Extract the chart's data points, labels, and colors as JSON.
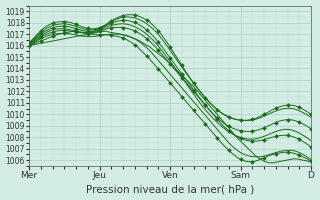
{
  "title": "Pression niveau de la mer( hPa )",
  "bg_color": "#d4ede4",
  "grid_major_color": "#aacfc4",
  "grid_minor_color": "#c0ddd6",
  "line_color": "#1a6b1a",
  "ylim": [
    1005.5,
    1019.5
  ],
  "yticks": [
    1006,
    1007,
    1008,
    1009,
    1010,
    1011,
    1012,
    1013,
    1014,
    1015,
    1016,
    1017,
    1018,
    1019
  ],
  "xtick_labels": [
    "Mer",
    "Jeu",
    "Ven",
    "Sam",
    "D"
  ],
  "xtick_positions": [
    0,
    24,
    48,
    72,
    96
  ],
  "n_points": 97,
  "series": [
    {
      "values": [
        1016.0,
        1016.05,
        1016.1,
        1016.15,
        1016.2,
        1016.25,
        1016.3,
        1016.35,
        1016.4,
        1016.45,
        1016.5,
        1016.55,
        1016.6,
        1016.65,
        1016.7,
        1016.75,
        1016.8,
        1016.85,
        1016.9,
        1016.95,
        1017.0,
        1017.05,
        1017.1,
        1017.15,
        1017.2,
        1017.25,
        1017.25,
        1017.2,
        1017.15,
        1017.1,
        1017.05,
        1017.0,
        1016.95,
        1016.9,
        1016.8,
        1016.7,
        1016.6,
        1016.5,
        1016.35,
        1016.2,
        1016.05,
        1015.9,
        1015.7,
        1015.5,
        1015.3,
        1015.1,
        1014.9,
        1014.65,
        1014.4,
        1014.15,
        1013.9,
        1013.65,
        1013.4,
        1013.15,
        1012.9,
        1012.65,
        1012.4,
        1012.1,
        1011.8,
        1011.5,
        1011.2,
        1010.9,
        1010.6,
        1010.3,
        1010.0,
        1009.7,
        1009.4,
        1009.1,
        1008.8,
        1008.5,
        1008.2,
        1007.9,
        1007.65,
        1007.4,
        1007.15,
        1006.9,
        1006.65,
        1006.4,
        1006.2,
        1006.05,
        1005.9,
        1005.8,
        1005.75,
        1005.75,
        1005.8,
        1005.85,
        1005.9,
        1005.95,
        1006.0,
        1006.05,
        1006.1,
        1006.1,
        1006.05,
        1006.0,
        1005.95,
        1005.9,
        1005.85
      ],
      "has_marker": false,
      "lw": 0.7
    },
    {
      "values": [
        1016.0,
        1016.1,
        1016.2,
        1016.3,
        1016.4,
        1016.5,
        1016.6,
        1016.7,
        1016.8,
        1016.9,
        1017.0,
        1017.05,
        1017.1,
        1017.15,
        1017.2,
        1017.25,
        1017.25,
        1017.2,
        1017.15,
        1017.1,
        1017.05,
        1017.0,
        1016.98,
        1016.95,
        1016.95,
        1016.95,
        1016.95,
        1016.93,
        1016.9,
        1016.85,
        1016.8,
        1016.75,
        1016.65,
        1016.55,
        1016.4,
        1016.25,
        1016.05,
        1015.85,
        1015.6,
        1015.35,
        1015.1,
        1014.85,
        1014.55,
        1014.25,
        1013.95,
        1013.65,
        1013.35,
        1013.05,
        1012.75,
        1012.45,
        1012.15,
        1011.85,
        1011.55,
        1011.25,
        1010.95,
        1010.65,
        1010.35,
        1010.05,
        1009.75,
        1009.45,
        1009.15,
        1008.85,
        1008.55,
        1008.25,
        1007.95,
        1007.65,
        1007.35,
        1007.1,
        1006.85,
        1006.6,
        1006.4,
        1006.2,
        1006.05,
        1005.95,
        1005.88,
        1005.85,
        1005.85,
        1005.9,
        1005.98,
        1006.1,
        1006.2,
        1006.3,
        1006.4,
        1006.48,
        1006.55,
        1006.6,
        1006.65,
        1006.68,
        1006.68,
        1006.65,
        1006.6,
        1006.52,
        1006.42,
        1006.3,
        1006.18,
        1006.05,
        1005.92
      ],
      "has_marker": true,
      "lw": 0.7
    },
    {
      "values": [
        1016.0,
        1016.15,
        1016.3,
        1016.45,
        1016.6,
        1016.72,
        1016.82,
        1016.9,
        1016.97,
        1017.02,
        1017.05,
        1017.07,
        1017.07,
        1017.05,
        1017.02,
        1016.98,
        1016.93,
        1016.88,
        1016.83,
        1016.8,
        1016.78,
        1016.78,
        1016.8,
        1016.83,
        1016.87,
        1016.9,
        1016.95,
        1016.98,
        1017.0,
        1017.0,
        1017.0,
        1016.98,
        1016.93,
        1016.88,
        1016.8,
        1016.7,
        1016.58,
        1016.42,
        1016.25,
        1016.05,
        1015.82,
        1015.58,
        1015.3,
        1015.0,
        1014.7,
        1014.4,
        1014.1,
        1013.8,
        1013.5,
        1013.2,
        1012.9,
        1012.6,
        1012.3,
        1012.0,
        1011.7,
        1011.4,
        1011.1,
        1010.8,
        1010.5,
        1010.2,
        1009.9,
        1009.6,
        1009.3,
        1009.0,
        1008.7,
        1008.4,
        1008.1,
        1007.8,
        1007.5,
        1007.25,
        1007.02,
        1006.82,
        1006.65,
        1006.52,
        1006.42,
        1006.35,
        1006.3,
        1006.28,
        1006.28,
        1006.3,
        1006.35,
        1006.42,
        1006.5,
        1006.58,
        1006.65,
        1006.72,
        1006.78,
        1006.82,
        1006.85,
        1006.85,
        1006.82,
        1006.75,
        1006.65,
        1006.52,
        1006.38,
        1006.22,
        1006.05
      ],
      "has_marker": false,
      "lw": 0.7
    },
    {
      "values": [
        1016.05,
        1016.2,
        1016.38,
        1016.55,
        1016.72,
        1016.87,
        1017.0,
        1017.1,
        1017.18,
        1017.25,
        1017.3,
        1017.32,
        1017.32,
        1017.3,
        1017.27,
        1017.23,
        1017.18,
        1017.15,
        1017.12,
        1017.1,
        1017.1,
        1017.12,
        1017.15,
        1017.2,
        1017.28,
        1017.35,
        1017.42,
        1017.5,
        1017.55,
        1017.58,
        1017.6,
        1017.6,
        1017.58,
        1017.53,
        1017.47,
        1017.38,
        1017.28,
        1017.15,
        1017.0,
        1016.82,
        1016.62,
        1016.4,
        1016.15,
        1015.88,
        1015.6,
        1015.3,
        1015.0,
        1014.7,
        1014.4,
        1014.1,
        1013.8,
        1013.5,
        1013.2,
        1012.9,
        1012.6,
        1012.3,
        1012.0,
        1011.7,
        1011.4,
        1011.1,
        1010.8,
        1010.5,
        1010.2,
        1009.9,
        1009.6,
        1009.3,
        1009.02,
        1008.77,
        1008.55,
        1008.35,
        1008.17,
        1008.02,
        1007.9,
        1007.8,
        1007.72,
        1007.67,
        1007.65,
        1007.65,
        1007.67,
        1007.72,
        1007.78,
        1007.85,
        1007.93,
        1008.0,
        1008.07,
        1008.12,
        1008.15,
        1008.17,
        1008.15,
        1008.1,
        1008.03,
        1007.92,
        1007.8,
        1007.65,
        1007.5,
        1007.33,
        1007.15
      ],
      "has_marker": true,
      "lw": 0.7
    },
    {
      "values": [
        1016.1,
        1016.28,
        1016.48,
        1016.67,
        1016.85,
        1017.02,
        1017.17,
        1017.28,
        1017.37,
        1017.43,
        1017.47,
        1017.48,
        1017.47,
        1017.43,
        1017.38,
        1017.32,
        1017.25,
        1017.2,
        1017.17,
        1017.15,
        1017.15,
        1017.18,
        1017.23,
        1017.3,
        1017.38,
        1017.48,
        1017.57,
        1017.67,
        1017.75,
        1017.82,
        1017.87,
        1017.9,
        1017.9,
        1017.88,
        1017.83,
        1017.75,
        1017.65,
        1017.52,
        1017.37,
        1017.2,
        1017.0,
        1016.78,
        1016.53,
        1016.25,
        1015.95,
        1015.63,
        1015.3,
        1014.97,
        1014.63,
        1014.28,
        1013.93,
        1013.58,
        1013.23,
        1012.87,
        1012.5,
        1012.13,
        1011.77,
        1011.4,
        1011.05,
        1010.72,
        1010.4,
        1010.1,
        1009.82,
        1009.55,
        1009.3,
        1009.07,
        1008.85,
        1008.65,
        1008.47,
        1008.32,
        1008.18,
        1008.07,
        1007.98,
        1007.9,
        1007.85,
        1007.82,
        1007.82,
        1007.85,
        1007.9,
        1007.98,
        1008.07,
        1008.17,
        1008.28,
        1008.38,
        1008.48,
        1008.57,
        1008.63,
        1008.68,
        1008.68,
        1008.65,
        1008.58,
        1008.48,
        1008.35,
        1008.2,
        1008.05,
        1007.87,
        1007.68
      ],
      "has_marker": false,
      "lw": 0.7
    },
    {
      "values": [
        1016.15,
        1016.35,
        1016.58,
        1016.8,
        1017.0,
        1017.18,
        1017.33,
        1017.45,
        1017.55,
        1017.63,
        1017.68,
        1017.7,
        1017.7,
        1017.67,
        1017.62,
        1017.55,
        1017.47,
        1017.4,
        1017.33,
        1017.28,
        1017.25,
        1017.25,
        1017.28,
        1017.35,
        1017.45,
        1017.57,
        1017.7,
        1017.83,
        1017.95,
        1018.05,
        1018.13,
        1018.18,
        1018.2,
        1018.2,
        1018.17,
        1018.1,
        1018.02,
        1017.9,
        1017.75,
        1017.58,
        1017.38,
        1017.15,
        1016.9,
        1016.62,
        1016.3,
        1015.97,
        1015.63,
        1015.28,
        1014.93,
        1014.57,
        1014.22,
        1013.87,
        1013.52,
        1013.17,
        1012.82,
        1012.47,
        1012.13,
        1011.78,
        1011.45,
        1011.12,
        1010.8,
        1010.5,
        1010.22,
        1009.95,
        1009.7,
        1009.48,
        1009.28,
        1009.1,
        1008.95,
        1008.82,
        1008.72,
        1008.63,
        1008.57,
        1008.52,
        1008.5,
        1008.5,
        1008.52,
        1008.57,
        1008.63,
        1008.72,
        1008.82,
        1008.93,
        1009.05,
        1009.17,
        1009.27,
        1009.37,
        1009.45,
        1009.5,
        1009.53,
        1009.52,
        1009.48,
        1009.4,
        1009.3,
        1009.18,
        1009.05,
        1008.9,
        1008.73
      ],
      "has_marker": true,
      "lw": 0.7
    },
    {
      "values": [
        1016.2,
        1016.43,
        1016.67,
        1016.92,
        1017.15,
        1017.35,
        1017.52,
        1017.65,
        1017.75,
        1017.82,
        1017.87,
        1017.9,
        1017.9,
        1017.87,
        1017.82,
        1017.75,
        1017.67,
        1017.58,
        1017.5,
        1017.43,
        1017.38,
        1017.37,
        1017.38,
        1017.43,
        1017.53,
        1017.65,
        1017.8,
        1017.95,
        1018.1,
        1018.23,
        1018.33,
        1018.42,
        1018.47,
        1018.5,
        1018.5,
        1018.47,
        1018.42,
        1018.33,
        1018.22,
        1018.08,
        1017.92,
        1017.72,
        1017.5,
        1017.25,
        1016.97,
        1016.65,
        1016.32,
        1015.97,
        1015.6,
        1015.23,
        1014.87,
        1014.5,
        1014.13,
        1013.77,
        1013.42,
        1013.07,
        1012.73,
        1012.4,
        1012.08,
        1011.77,
        1011.47,
        1011.18,
        1010.9,
        1010.65,
        1010.42,
        1010.22,
        1010.05,
        1009.9,
        1009.77,
        1009.67,
        1009.58,
        1009.52,
        1009.48,
        1009.45,
        1009.45,
        1009.47,
        1009.5,
        1009.55,
        1009.63,
        1009.72,
        1009.83,
        1009.95,
        1010.07,
        1010.18,
        1010.28,
        1010.37,
        1010.45,
        1010.5,
        1010.52,
        1010.52,
        1010.48,
        1010.4,
        1010.3,
        1010.18,
        1010.05,
        1009.9,
        1009.73
      ],
      "has_marker": false,
      "lw": 0.7
    },
    {
      "values": [
        1016.25,
        1016.5,
        1016.77,
        1017.05,
        1017.3,
        1017.52,
        1017.7,
        1017.85,
        1017.95,
        1018.03,
        1018.07,
        1018.1,
        1018.1,
        1018.07,
        1018.02,
        1017.95,
        1017.85,
        1017.75,
        1017.65,
        1017.57,
        1017.5,
        1017.47,
        1017.47,
        1017.5,
        1017.57,
        1017.68,
        1017.82,
        1017.98,
        1018.15,
        1018.3,
        1018.43,
        1018.55,
        1018.63,
        1018.68,
        1018.7,
        1018.7,
        1018.67,
        1018.6,
        1018.5,
        1018.38,
        1018.23,
        1018.05,
        1017.83,
        1017.58,
        1017.3,
        1016.98,
        1016.63,
        1016.27,
        1015.88,
        1015.48,
        1015.08,
        1014.67,
        1014.27,
        1013.87,
        1013.48,
        1013.1,
        1012.73,
        1012.38,
        1012.05,
        1011.73,
        1011.43,
        1011.15,
        1010.88,
        1010.63,
        1010.4,
        1010.2,
        1010.02,
        1009.87,
        1009.75,
        1009.65,
        1009.57,
        1009.52,
        1009.48,
        1009.47,
        1009.47,
        1009.5,
        1009.55,
        1009.63,
        1009.73,
        1009.85,
        1009.98,
        1010.12,
        1010.27,
        1010.4,
        1010.52,
        1010.62,
        1010.7,
        1010.77,
        1010.8,
        1010.8,
        1010.77,
        1010.7,
        1010.6,
        1010.47,
        1010.33,
        1010.17,
        1010.0
      ],
      "has_marker": true,
      "lw": 0.7
    }
  ],
  "marker": "D",
  "markersize": 2.0,
  "markevery": 4
}
